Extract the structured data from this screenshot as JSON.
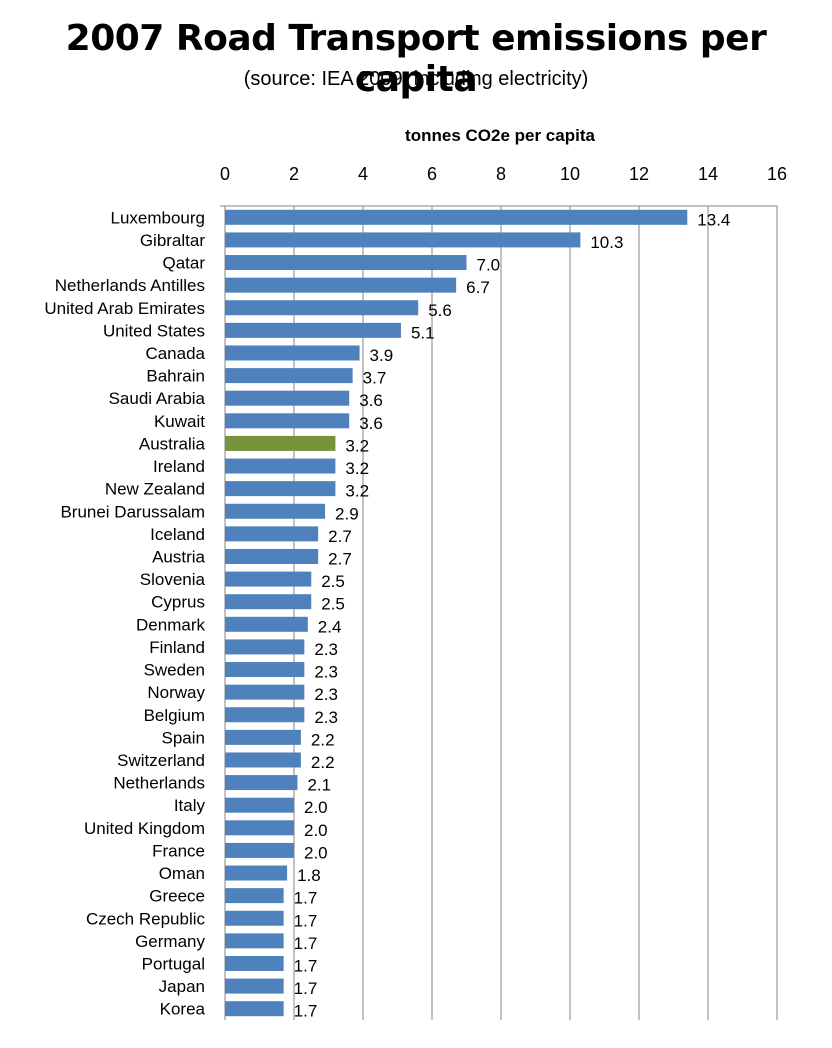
{
  "chart_data": {
    "type": "bar",
    "orientation": "horizontal",
    "title": "2007 Road Transport emissions per capita",
    "subtitle": "(source: IEA 2009, including electricity)",
    "xlabel": "tonnes CO2e per capita",
    "ylabel": "",
    "xlim": [
      0,
      16
    ],
    "xticks": [
      "0",
      "2",
      "4",
      "6",
      "8",
      "10",
      "12",
      "14",
      "16"
    ],
    "axis_position": "top",
    "grid": true,
    "categories": [
      "Luxembourg",
      "Gibraltar",
      "Qatar",
      "Netherlands Antilles",
      "United Arab Emirates",
      "United States",
      "Canada",
      "Bahrain",
      "Saudi Arabia",
      "Kuwait",
      "Australia",
      "Ireland",
      "New Zealand",
      "Brunei Darussalam",
      "Iceland",
      "Austria",
      "Slovenia",
      "Cyprus",
      "Denmark",
      "Finland",
      "Sweden",
      "Norway",
      "Belgium",
      "Spain",
      "Switzerland",
      "Netherlands",
      "Italy",
      "United Kingdom",
      "France",
      "Oman",
      "Greece",
      "Czech Republic",
      "Germany",
      "Portugal",
      "Japan",
      "Korea"
    ],
    "values": [
      13.4,
      10.3,
      7.0,
      6.7,
      5.6,
      5.1,
      3.9,
      3.7,
      3.6,
      3.6,
      3.2,
      3.2,
      3.2,
      2.9,
      2.7,
      2.7,
      2.5,
      2.5,
      2.4,
      2.3,
      2.3,
      2.3,
      2.3,
      2.2,
      2.2,
      2.1,
      2.0,
      2.0,
      2.0,
      1.8,
      1.7,
      1.7,
      1.7,
      1.7,
      1.7,
      1.7
    ],
    "value_labels": [
      "13.4",
      "10.3",
      "7.0",
      "6.7",
      "5.6",
      "5.1",
      "3.9",
      "3.7",
      "3.6",
      "3.6",
      "3.2",
      "3.2",
      "3.2",
      "2.9",
      "2.7",
      "2.7",
      "2.5",
      "2.5",
      "2.4",
      "2.3",
      "2.3",
      "2.3",
      "2.3",
      "2.2",
      "2.2",
      "2.1",
      "2.0",
      "2.0",
      "2.0",
      "1.8",
      "1.7",
      "1.7",
      "1.7",
      "1.7",
      "1.7",
      "1.7"
    ],
    "bar_color": "#4F81BD",
    "highlight_category": "Australia",
    "highlight_color": "#77933C",
    "grid_color": "#868686"
  }
}
